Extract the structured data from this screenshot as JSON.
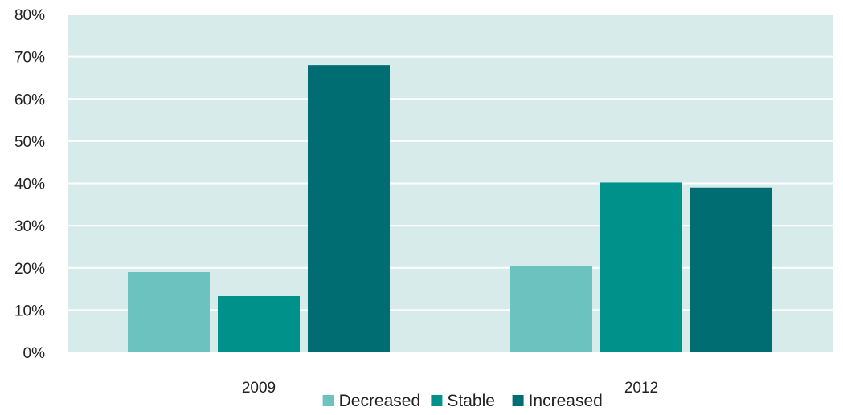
{
  "chart_data": {
    "type": "bar",
    "title": "",
    "xlabel": "",
    "ylabel": "",
    "categories": [
      "2009",
      "2012"
    ],
    "series": [
      {
        "name": "Decreased",
        "values": [
          19,
          20.5
        ],
        "color": "#6bc2bf"
      },
      {
        "name": "Stable",
        "values": [
          13.3,
          40.2
        ],
        "color": "#00918a"
      },
      {
        "name": "Increased",
        "values": [
          68,
          39
        ],
        "color": "#006d73"
      }
    ],
    "ylim": [
      0,
      80
    ],
    "y_ticks": [
      0,
      10,
      20,
      30,
      40,
      50,
      60,
      70,
      80
    ],
    "y_tick_labels": [
      "0%",
      "10%",
      "20%",
      "30%",
      "40%",
      "50%",
      "60%",
      "70%",
      "80%"
    ],
    "grid": true,
    "plot_background": "#d7ecea",
    "gridline_color": "#ffffff",
    "legend_position": "bottom"
  }
}
